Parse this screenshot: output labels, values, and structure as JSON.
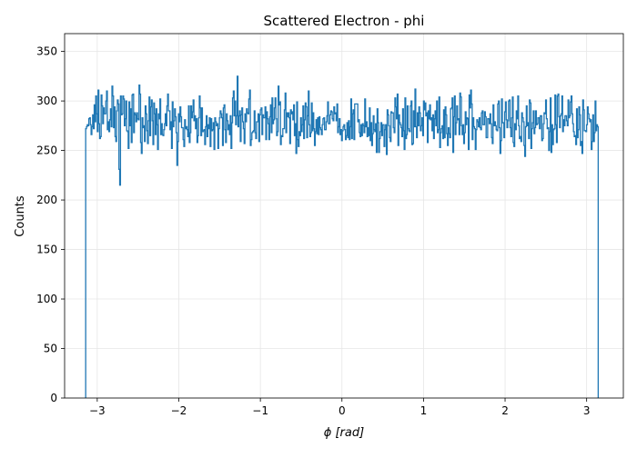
{
  "chart_data": {
    "type": "histogram",
    "title": "Scattered Electron - phi",
    "xlabel": "ϕ [rad]",
    "ylabel": "Counts",
    "xlim": [
      -3.4,
      3.45
    ],
    "ylim": [
      0,
      368
    ],
    "xticks": [
      -3,
      -2,
      -1,
      0,
      1,
      2,
      3
    ],
    "xtick_labels": [
      "−3",
      "−2",
      "−1",
      "0",
      "1",
      "2",
      "3"
    ],
    "yticks": [
      0,
      50,
      100,
      150,
      200,
      250,
      300,
      350
    ],
    "ytick_labels": [
      "0",
      "50",
      "100",
      "150",
      "200",
      "250",
      "300",
      "350"
    ],
    "grid": true,
    "line_color": "#1f77b4",
    "x_range": [
      -3.14159,
      3.14159
    ],
    "bin_count": 630,
    "values": [
      272,
      274,
      276,
      275,
      282,
      283,
      276,
      266,
      274,
      286,
      272,
      296,
      279,
      305,
      287,
      269,
      311,
      277,
      262,
      264,
      306,
      295,
      277,
      293,
      287,
      287,
      300,
      310,
      271,
      279,
      269,
      281,
      292,
      274,
      315,
      305,
      273,
      294,
      264,
      259,
      290,
      301,
      297,
      231,
      215,
      305,
      286,
      287,
      305,
      302,
      275,
      282,
      300,
      270,
      269,
      252,
      299,
      275,
      292,
      258,
      306,
      307,
      268,
      288,
      286,
      279,
      288,
      282,
      281,
      316,
      307,
      258,
      247,
      283,
      273,
      275,
      259,
      295,
      287,
      270,
      257,
      280,
      304,
      265,
      294,
      301,
      280,
      256,
      298,
      287,
      266,
      292,
      276,
      251,
      287,
      282,
      302,
      266,
      277,
      266,
      265,
      271,
      277,
      287,
      275,
      295,
      307,
      290,
      290,
      271,
      279,
      252,
      299,
      274,
      280,
      292,
      284,
      268,
      235,
      259,
      287,
      279,
      294,
      284,
      273,
      273,
      261,
      254,
      281,
      272,
      274,
      271,
      264,
      295,
      258,
      268,
      295,
      283,
      289,
      301,
      280,
      285,
      272,
      282,
      258,
      265,
      283,
      305,
      293,
      265,
      293,
      269,
      270,
      271,
      256,
      274,
      285,
      264,
      276,
      272,
      283,
      254,
      282,
      270,
      271,
      278,
      251,
      283,
      279,
      275,
      277,
      252,
      272,
      283,
      290,
      287,
      283,
      255,
      293,
      296,
      271,
      258,
      287,
      280,
      271,
      276,
      266,
      285,
      252,
      278,
      303,
      310,
      285,
      300,
      276,
      285,
      325,
      274,
      285,
      290,
      259,
      286,
      293,
      279,
      272,
      257,
      287,
      279,
      292,
      288,
      287,
      302,
      311,
      255,
      261,
      268,
      269,
      270,
      290,
      268,
      262,
      279,
      279,
      287,
      259,
      286,
      291,
      293,
      266,
      286,
      283,
      283,
      294,
      261,
      289,
      282,
      277,
      261,
      284,
      296,
      268,
      303,
      277,
      281,
      293,
      303,
      282,
      265,
      269,
      315,
      296,
      299,
      256,
      265,
      264,
      272,
      272,
      291,
      308,
      268,
      288,
      284,
      288,
      283,
      257,
      291,
      287,
      289,
      281,
      296,
      265,
      277,
      247,
      299,
      261,
      254,
      269,
      265,
      283,
      269,
      276,
      295,
      262,
      281,
      298,
      294,
      263,
      285,
      310,
      276,
      264,
      268,
      298,
      270,
      288,
      272,
      255,
      269,
      281,
      267,
      283,
      266,
      284,
      273,
      271,
      266,
      276,
      282,
      283,
      271,
      271,
      279,
      285,
      299,
      277,
      277,
      286,
      290,
      289,
      282,
      280,
      294,
      287,
      288,
      280,
      297,
      268,
      274,
      282,
      266,
      271,
      260,
      270,
      274,
      276,
      271,
      261,
      265,
      278,
      263,
      280,
      261,
      274,
      302,
      262,
      287,
      291,
      261,
      297,
      297,
      297,
      297,
      279,
      281,
      268,
      264,
      276,
      265,
      277,
      275,
      268,
      302,
      274,
      279,
      264,
      273,
      265,
      293,
      260,
      278,
      255,
      267,
      285,
      271,
      269,
      277,
      248,
      292,
      278,
      248,
      262,
      269,
      278,
      265,
      276,
      276,
      254,
      271,
      276,
      246,
      291,
      286,
      275,
      263,
      259,
      289,
      288,
      288,
      273,
      268,
      303,
      294,
      282,
      307,
      255,
      286,
      278,
      276,
      273,
      264,
      292,
      270,
      251,
      303,
      262,
      266,
      295,
      272,
      270,
      269,
      295,
      300,
      256,
      257,
      290,
      274,
      312,
      274,
      263,
      288,
      275,
      294,
      288,
      270,
      275,
      283,
      265,
      300,
      291,
      298,
      285,
      288,
      258,
      290,
      282,
      296,
      281,
      283,
      270,
      286,
      262,
      282,
      290,
      275,
      300,
      268,
      271,
      304,
      253,
      268,
      272,
      275,
      262,
      291,
      263,
      294,
      286,
      267,
      255,
      273,
      267,
      263,
      292,
      293,
      303,
      248,
      284,
      305,
      266,
      278,
      295,
      281,
      282,
      266,
      308,
      304,
      275,
      266,
      276,
      257,
      268,
      289,
      276,
      283,
      282,
      251,
      306,
      293,
      311,
      297,
      261,
      283,
      274,
      272,
      251,
      271,
      281,
      279,
      274,
      283,
      273,
      271,
      288,
      290,
      276,
      276,
      289,
      284,
      263,
      263,
      282,
      282,
      277,
      287,
      277,
      263,
      257,
      296,
      275,
      279,
      275,
      271,
      270,
      297,
      300,
      273,
      247,
      260,
      302,
      278,
      278,
      263,
      289,
      299,
      281,
      273,
      280,
      300,
      301,
      273,
      264,
      283,
      304,
      258,
      254,
      277,
      271,
      290,
      282,
      305,
      275,
      262,
      264,
      259,
      288,
      283,
      279,
      255,
      244,
      274,
      295,
      275,
      278,
      262,
      301,
      298,
      252,
      272,
      278,
      290,
      267,
      273,
      290,
      276,
      277,
      283,
      283,
      272,
      285,
      285,
      260,
      262,
      277,
      288,
      287,
      301,
      282,
      272,
      273,
      250,
      269,
      303,
      248,
      276,
      256,
      271,
      272,
      306,
      276,
      258,
      305,
      307,
      284,
      273,
      285,
      287,
      305,
      269,
      281,
      275,
      285,
      285,
      280,
      275,
      301,
      283,
      285,
      299,
      305,
      287,
      277,
      269,
      264,
      265,
      256,
      292,
      263,
      271,
      294,
      286,
      255,
      259,
      247,
      301,
      291,
      270,
      270,
      269,
      276,
      294,
      287,
      282,
      279,
      281,
      251,
      259,
      286,
      259,
      268,
      300,
      270,
      276,
      274
    ]
  }
}
